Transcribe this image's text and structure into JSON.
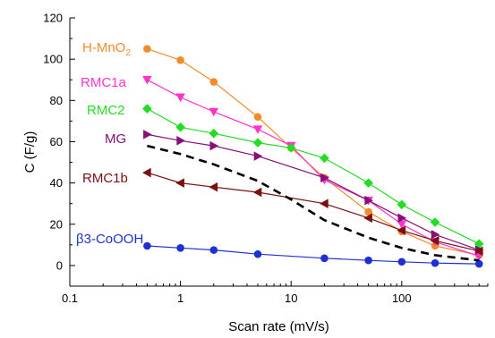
{
  "chart_data": {
    "type": "line",
    "title": "",
    "xlabel": "Scan rate (mV/s)",
    "ylabel": "C (F/g)",
    "xscale": "log",
    "xlim": [
      0.1,
      600
    ],
    "ylim": [
      -10,
      120
    ],
    "xticks": [
      0.1,
      1,
      10,
      100
    ],
    "xtick_labels": [
      "0.1",
      "1",
      "10",
      "100"
    ],
    "yticks": [
      0,
      20,
      40,
      60,
      80,
      100,
      120
    ],
    "ytick_labels": [
      "0",
      "20",
      "40",
      "60",
      "80",
      "100",
      "120"
    ],
    "grid": false,
    "legend": "none",
    "x": [
      0.5,
      1,
      2,
      5,
      10,
      20,
      50,
      100,
      200,
      500
    ],
    "series": [
      {
        "name": "H-MnO2",
        "label_main": "H-MnO",
        "label_sub": "2",
        "color": "#f28c28",
        "marker": "circle",
        "values": [
          105,
          99.5,
          89,
          72,
          57,
          42.5,
          26,
          16.5,
          9.5,
          5
        ]
      },
      {
        "name": "RMC1a",
        "label_main": "RMC1a",
        "label_sub": "",
        "color": "#ff33cc",
        "marker": "triangle-down",
        "values": [
          90,
          81.5,
          74.5,
          66,
          58,
          41.5,
          31.5,
          20,
          11.5,
          4.5
        ]
      },
      {
        "name": "RMC2",
        "label_main": "RMC2",
        "label_sub": "",
        "color": "#22dd22",
        "marker": "diamond",
        "values": [
          76,
          67,
          64,
          59.5,
          57,
          52,
          40,
          29.5,
          21,
          10.5
        ]
      },
      {
        "name": "MG",
        "label_main": "MG",
        "label_sub": "",
        "color": "#880e7a",
        "marker": "triangle-right",
        "values": [
          63.5,
          60.5,
          58,
          53,
          null,
          42.5,
          31.5,
          23,
          15,
          7.5
        ]
      },
      {
        "name": "RMC1b",
        "label_main": "RMC1b",
        "label_sub": "",
        "color": "#7a1010",
        "marker": "triangle-left",
        "values": [
          45,
          40,
          38,
          35.5,
          null,
          30,
          23,
          17,
          12,
          7
        ]
      },
      {
        "name": "β3-CoOOH",
        "label_main": "β3-CoOOH",
        "label_sub": "",
        "color": "#1f2fd6",
        "marker": "circle",
        "values": [
          9.5,
          8.5,
          7.5,
          5.5,
          null,
          3.5,
          2.5,
          1.8,
          1.2,
          0.8
        ]
      },
      {
        "name": "",
        "label_main": "",
        "label_sub": "",
        "color": "#000000",
        "marker": "none",
        "dashed": true,
        "values": [
          58,
          54,
          49,
          41,
          32,
          22,
          13.5,
          8.5,
          5,
          2.5
        ]
      }
    ]
  }
}
